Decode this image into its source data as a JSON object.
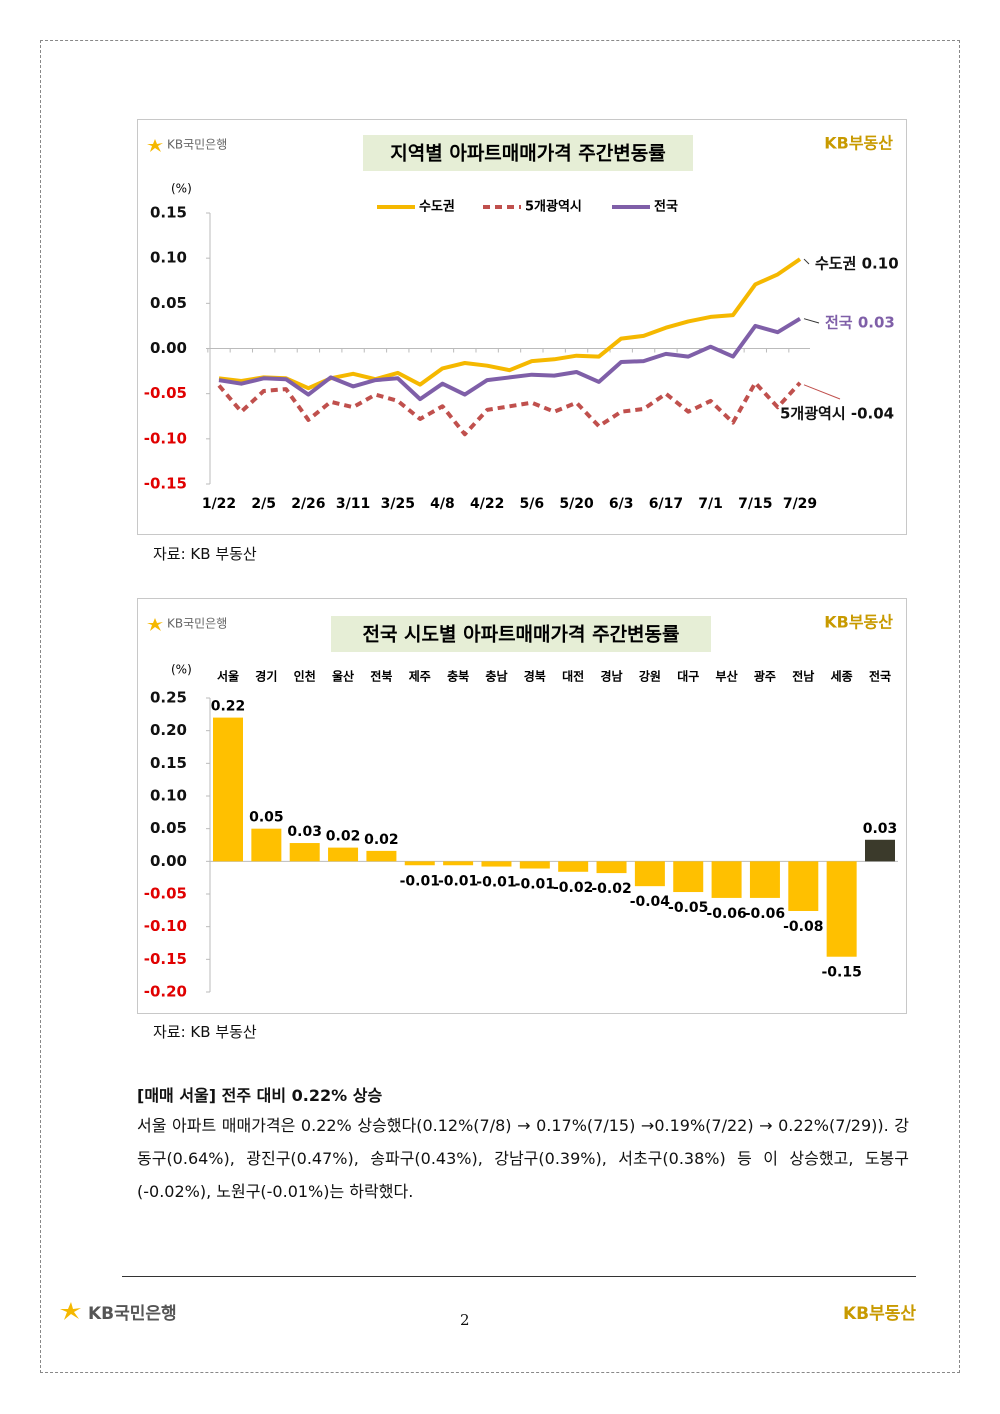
{
  "page": {
    "source_1": "자료: KB 부동산",
    "source_2": "자료: KB 부동산",
    "heading": "[매매 서울] 전주 대비 0.22% 상승",
    "paragraph": "서울 아파트 매매가격은 0.22% 상승했다(0.12%(7/8) → 0.17%(7/15) →0.19%(7/22) → 0.22%(7/29)). 강동구(0.64%), 광진구(0.47%), 송파구(0.43%), 강남구(0.39%), 서초구(0.38%) 등 이 상승했고, 도봉구(-0.02%), 노원구(-0.01%)는 하락했다.",
    "footer_left": "KB국민은행",
    "footer_right": "KB부동산",
    "page_number": "2"
  },
  "chart_data": [
    {
      "type": "line",
      "title": "지역별 아파트매매가격 주간변동률",
      "logo_left": "KB국민은행",
      "logo_right": "KB부동산",
      "y_unit": "(%)",
      "categories": [
        "1/22",
        null,
        "2/5",
        null,
        "2/26",
        null,
        "3/11",
        null,
        "3/25",
        null,
        "4/8",
        null,
        "4/22",
        null,
        "5/6",
        null,
        "5/20",
        null,
        "6/3",
        null,
        "6/17",
        null,
        "7/1",
        null,
        "7/15",
        null,
        "7/29"
      ],
      "series": [
        {
          "name": "수도권",
          "color": "#f5b800",
          "dashed": false,
          "end_label": "수도권 0.10",
          "values": [
            -0.033,
            -0.036,
            -0.032,
            -0.033,
            -0.044,
            -0.033,
            -0.028,
            -0.034,
            -0.027,
            -0.04,
            -0.022,
            -0.016,
            -0.019,
            -0.024,
            -0.014,
            -0.012,
            -0.008,
            -0.009,
            0.011,
            0.014,
            0.023,
            0.03,
            0.035,
            0.037,
            0.071,
            0.082,
            0.099
          ]
        },
        {
          "name": "5개광역시",
          "color": "#c0504d",
          "dashed": true,
          "end_label": "5개광역시 -0.04",
          "values": [
            -0.041,
            -0.07,
            -0.047,
            -0.045,
            -0.079,
            -0.059,
            -0.065,
            -0.051,
            -0.058,
            -0.078,
            -0.064,
            -0.095,
            -0.068,
            -0.064,
            -0.06,
            -0.07,
            -0.06,
            -0.086,
            -0.07,
            -0.067,
            -0.05,
            -0.07,
            -0.058,
            -0.082,
            -0.038,
            -0.065,
            -0.038
          ]
        },
        {
          "name": "전국",
          "color": "#7f5fa8",
          "dashed": false,
          "end_label": "전국 0.03",
          "values": [
            -0.035,
            -0.039,
            -0.033,
            -0.034,
            -0.051,
            -0.032,
            -0.042,
            -0.035,
            -0.033,
            -0.056,
            -0.039,
            -0.051,
            -0.035,
            -0.032,
            -0.029,
            -0.03,
            -0.026,
            -0.037,
            -0.015,
            -0.014,
            -0.006,
            -0.009,
            0.002,
            -0.009,
            0.025,
            0.018,
            0.033
          ]
        }
      ],
      "ylim": [
        -0.15,
        0.15
      ],
      "yticks": [
        {
          "value": 0.15,
          "label": "0.15"
        },
        {
          "value": 0.1,
          "label": "0.10"
        },
        {
          "value": 0.05,
          "label": "0.05"
        },
        {
          "value": 0,
          "label": "0.00"
        },
        {
          "value": -0.05,
          "label": "-0.05"
        },
        {
          "value": -0.1,
          "label": "-0.10"
        },
        {
          "value": -0.15,
          "label": "-0.15"
        }
      ],
      "negative_tick_color": "#e00000",
      "grid": false
    },
    {
      "type": "bar",
      "title": "전국 시도별 아파트매매가격 주간변동률",
      "logo_left": "KB국민은행",
      "logo_right": "KB부동산",
      "y_unit": "(%)",
      "categories": [
        "서울",
        "경기",
        "인천",
        "울산",
        "전북",
        "제주",
        "충북",
        "충남",
        "경북",
        "대전",
        "경남",
        "강원",
        "대구",
        "부산",
        "광주",
        "전남",
        "세종",
        "전국"
      ],
      "values": [
        0.22,
        0.05,
        0.028,
        0.021,
        0.016,
        -0.006,
        -0.006,
        -0.008,
        -0.011,
        -0.016,
        -0.018,
        -0.038,
        -0.047,
        -0.056,
        -0.056,
        -0.076,
        -0.146,
        0.033
      ],
      "value_labels": [
        "0.22",
        "0.05",
        "0.03",
        "0.02",
        "0.02",
        "-0.01",
        "-0.01",
        "-0.01",
        "-0.01",
        "-0.02",
        "-0.02",
        "-0.04",
        "-0.05",
        "-0.06",
        "-0.06",
        "-0.08",
        "-0.15",
        "0.03"
      ],
      "colors": [
        "#ffc000",
        "#ffc000",
        "#ffc000",
        "#ffc000",
        "#ffc000",
        "#ffc000",
        "#ffc000",
        "#ffc000",
        "#ffc000",
        "#ffc000",
        "#ffc000",
        "#ffc000",
        "#ffc000",
        "#ffc000",
        "#ffc000",
        "#ffc000",
        "#ffc000",
        "#3b3a2b"
      ],
      "ylim": [
        -0.2,
        0.25
      ],
      "yticks": [
        {
          "value": 0.25,
          "label": "0.25"
        },
        {
          "value": 0.2,
          "label": "0.20"
        },
        {
          "value": 0.15,
          "label": "0.15"
        },
        {
          "value": 0.1,
          "label": "0.10"
        },
        {
          "value": 0.05,
          "label": "0.05"
        },
        {
          "value": 0,
          "label": "0.00"
        },
        {
          "value": -0.05,
          "label": "-0.05"
        },
        {
          "value": -0.1,
          "label": "-0.10"
        },
        {
          "value": -0.15,
          "label": "-0.15"
        },
        {
          "value": -0.2,
          "label": "-0.20"
        }
      ],
      "negative_tick_color": "#e00000",
      "grid": false
    }
  ]
}
